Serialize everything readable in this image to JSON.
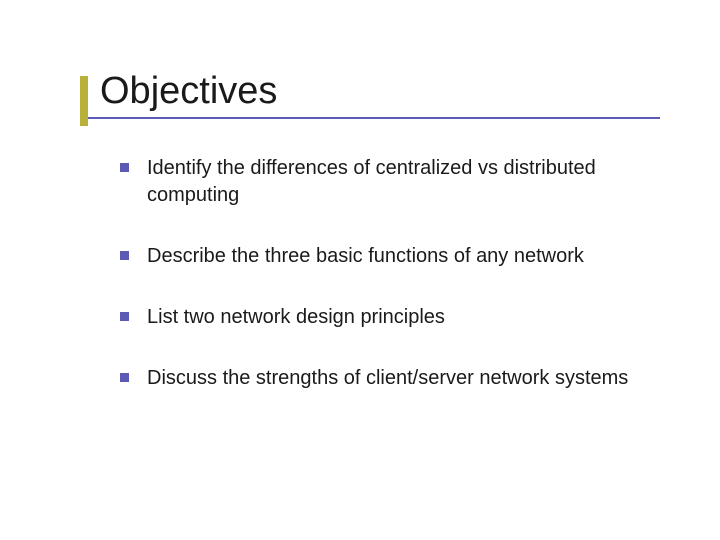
{
  "slide": {
    "title": "Objectives",
    "accent_color": "#b9b03a",
    "underline_color": "#5b5bb5",
    "bullet_color": "#5b5bb5",
    "title_color": "#1a1a1a",
    "text_color": "#1a1a1a",
    "background_color": "#ffffff",
    "title_fontsize": 38,
    "body_fontsize": 20,
    "bullets": [
      {
        "text": "Identify the differences of centralized vs distributed computing"
      },
      {
        "text": "Describe the three basic functions of any network"
      },
      {
        "text": "List two network design principles"
      },
      {
        "text": "Discuss the strengths of client/server network systems"
      }
    ]
  }
}
